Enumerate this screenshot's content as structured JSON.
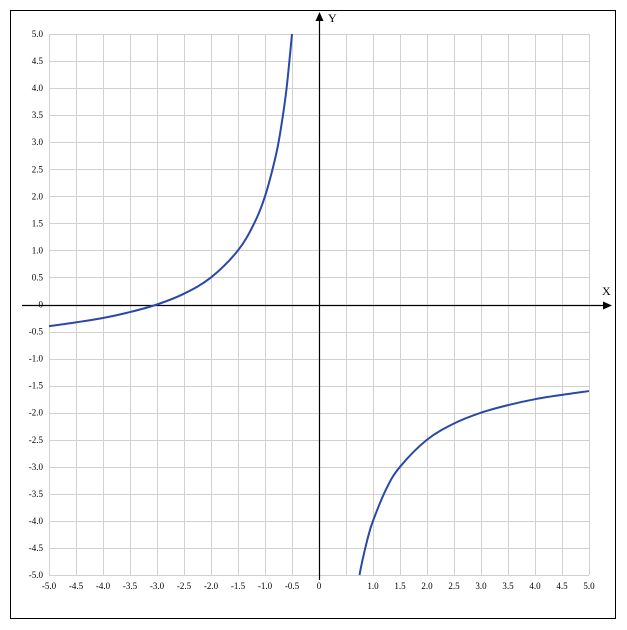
{
  "chart_data": {
    "type": "line",
    "title": "",
    "xlabel": "X",
    "ylabel": "Y",
    "xlim": [
      -5,
      5
    ],
    "ylim": [
      -5,
      5
    ],
    "grid": true,
    "grid_step": 0.5,
    "x_tick_labels": [
      "-5.0",
      "-4.5",
      "-4.0",
      "-3.5",
      "-3.0",
      "-2.5",
      "-2.0",
      "-1.5",
      "-1.0",
      "-0.5",
      "0",
      "1.0",
      "1.5",
      "2.0",
      "2.5",
      "3.0",
      "3.5",
      "4.0",
      "4.5",
      "5.0"
    ],
    "y_tick_labels": [
      "5.0",
      "4.5",
      "4.0",
      "3.5",
      "3.0",
      "2.5",
      "2.0",
      "1.5",
      "1.0",
      "0.5",
      "0",
      "-0.5",
      "-1.0",
      "-1.5",
      "-2.0",
      "-2.5",
      "-3.0",
      "-3.5",
      "-4.0",
      "-4.5",
      "-5.0"
    ],
    "series": [
      {
        "color": "#2a48a8",
        "segments": [
          {
            "x": [
              -5.0,
              -4.5,
              -4.0,
              -3.5,
              -3.0,
              -2.5,
              -2.0,
              -1.5,
              -1.2,
              -1.0,
              -0.8,
              -0.7,
              -0.6,
              -0.5
            ],
            "y": [
              -0.4,
              -0.33,
              -0.25,
              -0.14,
              0.0,
              0.2,
              0.5,
              1.0,
              1.5,
              2.0,
              2.75,
              3.29,
              4.0,
              5.0
            ]
          },
          {
            "x": [
              0.75,
              0.8,
              0.9,
              1.0,
              1.25,
              1.5,
              2.0,
              2.5,
              3.0,
              3.5,
              4.0,
              4.5,
              5.0
            ],
            "y": [
              -5.0,
              -4.75,
              -4.33,
              -4.0,
              -3.4,
              -3.0,
              -2.5,
              -2.2,
              -2.0,
              -1.86,
              -1.75,
              -1.67,
              -1.6
            ]
          }
        ]
      }
    ]
  }
}
